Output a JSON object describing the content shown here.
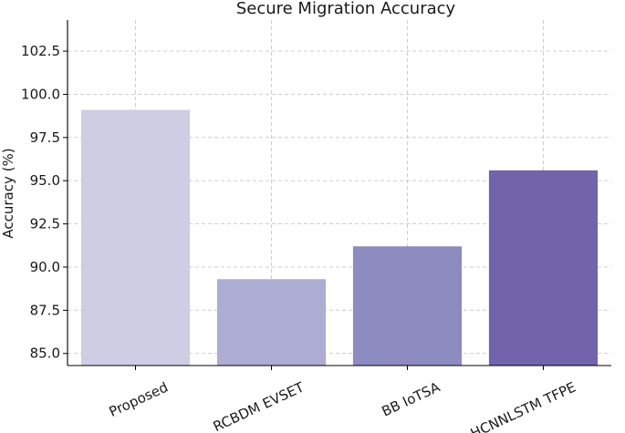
{
  "chart_data": {
    "type": "bar",
    "title": "Secure Migration Accuracy",
    "xlabel": "",
    "ylabel": "Accuracy (%)",
    "categories": [
      "Proposed",
      "RCBDM EVSET",
      "BB IoTSA",
      "HCNNLSTM TFPE"
    ],
    "values": [
      99.1,
      89.3,
      91.2,
      95.6
    ],
    "colors": [
      "#cdcde4",
      "#adacd3",
      "#8e8bc0",
      "#7263aa"
    ],
    "ylim": [
      84.3,
      104.3
    ],
    "yticks": [
      85.0,
      87.5,
      90.0,
      92.5,
      95.0,
      97.5,
      100.0,
      102.5
    ],
    "ytick_labels": [
      "85.0",
      "87.5",
      "90.0",
      "92.5",
      "95.0",
      "97.5",
      "100.0",
      "102.5"
    ],
    "grid": true,
    "legend": "none"
  }
}
